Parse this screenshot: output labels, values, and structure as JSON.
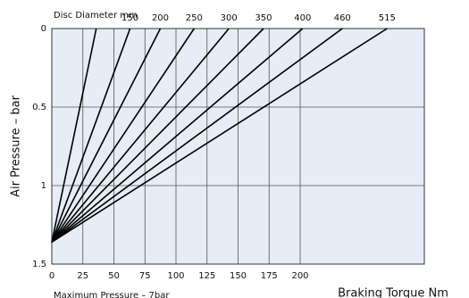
{
  "chart_data": {
    "type": "line",
    "title": "Disc Diameter mm",
    "ylabel": "Air Pressure – bar",
    "xlabel": "Braking Torque Nm",
    "note": "Maximum Pressure – 7bar",
    "series": [
      {
        "name": null,
        "color": "#000000",
        "x": [
          0,
          35.8
        ],
        "values": [
          1.36,
          0
        ]
      },
      {
        "name": "150",
        "color": "#000000",
        "x": [
          0,
          63
        ],
        "values": [
          1.36,
          0
        ]
      },
      {
        "name": "200",
        "color": "#000000",
        "x": [
          0,
          87.4
        ],
        "values": [
          1.36,
          0
        ]
      },
      {
        "name": "250",
        "color": "#000000",
        "x": [
          0,
          114.6
        ],
        "values": [
          1.36,
          0
        ]
      },
      {
        "name": "300",
        "color": "#000000",
        "x": [
          0,
          142.6
        ],
        "values": [
          1.36,
          0
        ]
      },
      {
        "name": "350",
        "color": "#000000",
        "x": [
          0,
          170.5
        ],
        "values": [
          1.36,
          0
        ]
      },
      {
        "name": "400",
        "color": "#000000",
        "x": [
          0,
          202
        ],
        "values": [
          1.36,
          0
        ]
      },
      {
        "name": "460",
        "color": "#000000",
        "x": [
          0,
          234
        ],
        "values": [
          1.36,
          0
        ]
      },
      {
        "name": "515",
        "color": "#000000",
        "x": [
          0,
          270
        ],
        "values": [
          1.36,
          0
        ]
      }
    ],
    "xlim": [
      0,
      300
    ],
    "xticks": [
      0,
      25,
      50,
      75,
      100,
      125,
      150,
      175,
      200
    ],
    "ylim": [
      1.5,
      0
    ],
    "yticks": [
      0,
      0.5,
      1,
      1.5
    ],
    "grid": true,
    "background": "#e6edf7"
  }
}
